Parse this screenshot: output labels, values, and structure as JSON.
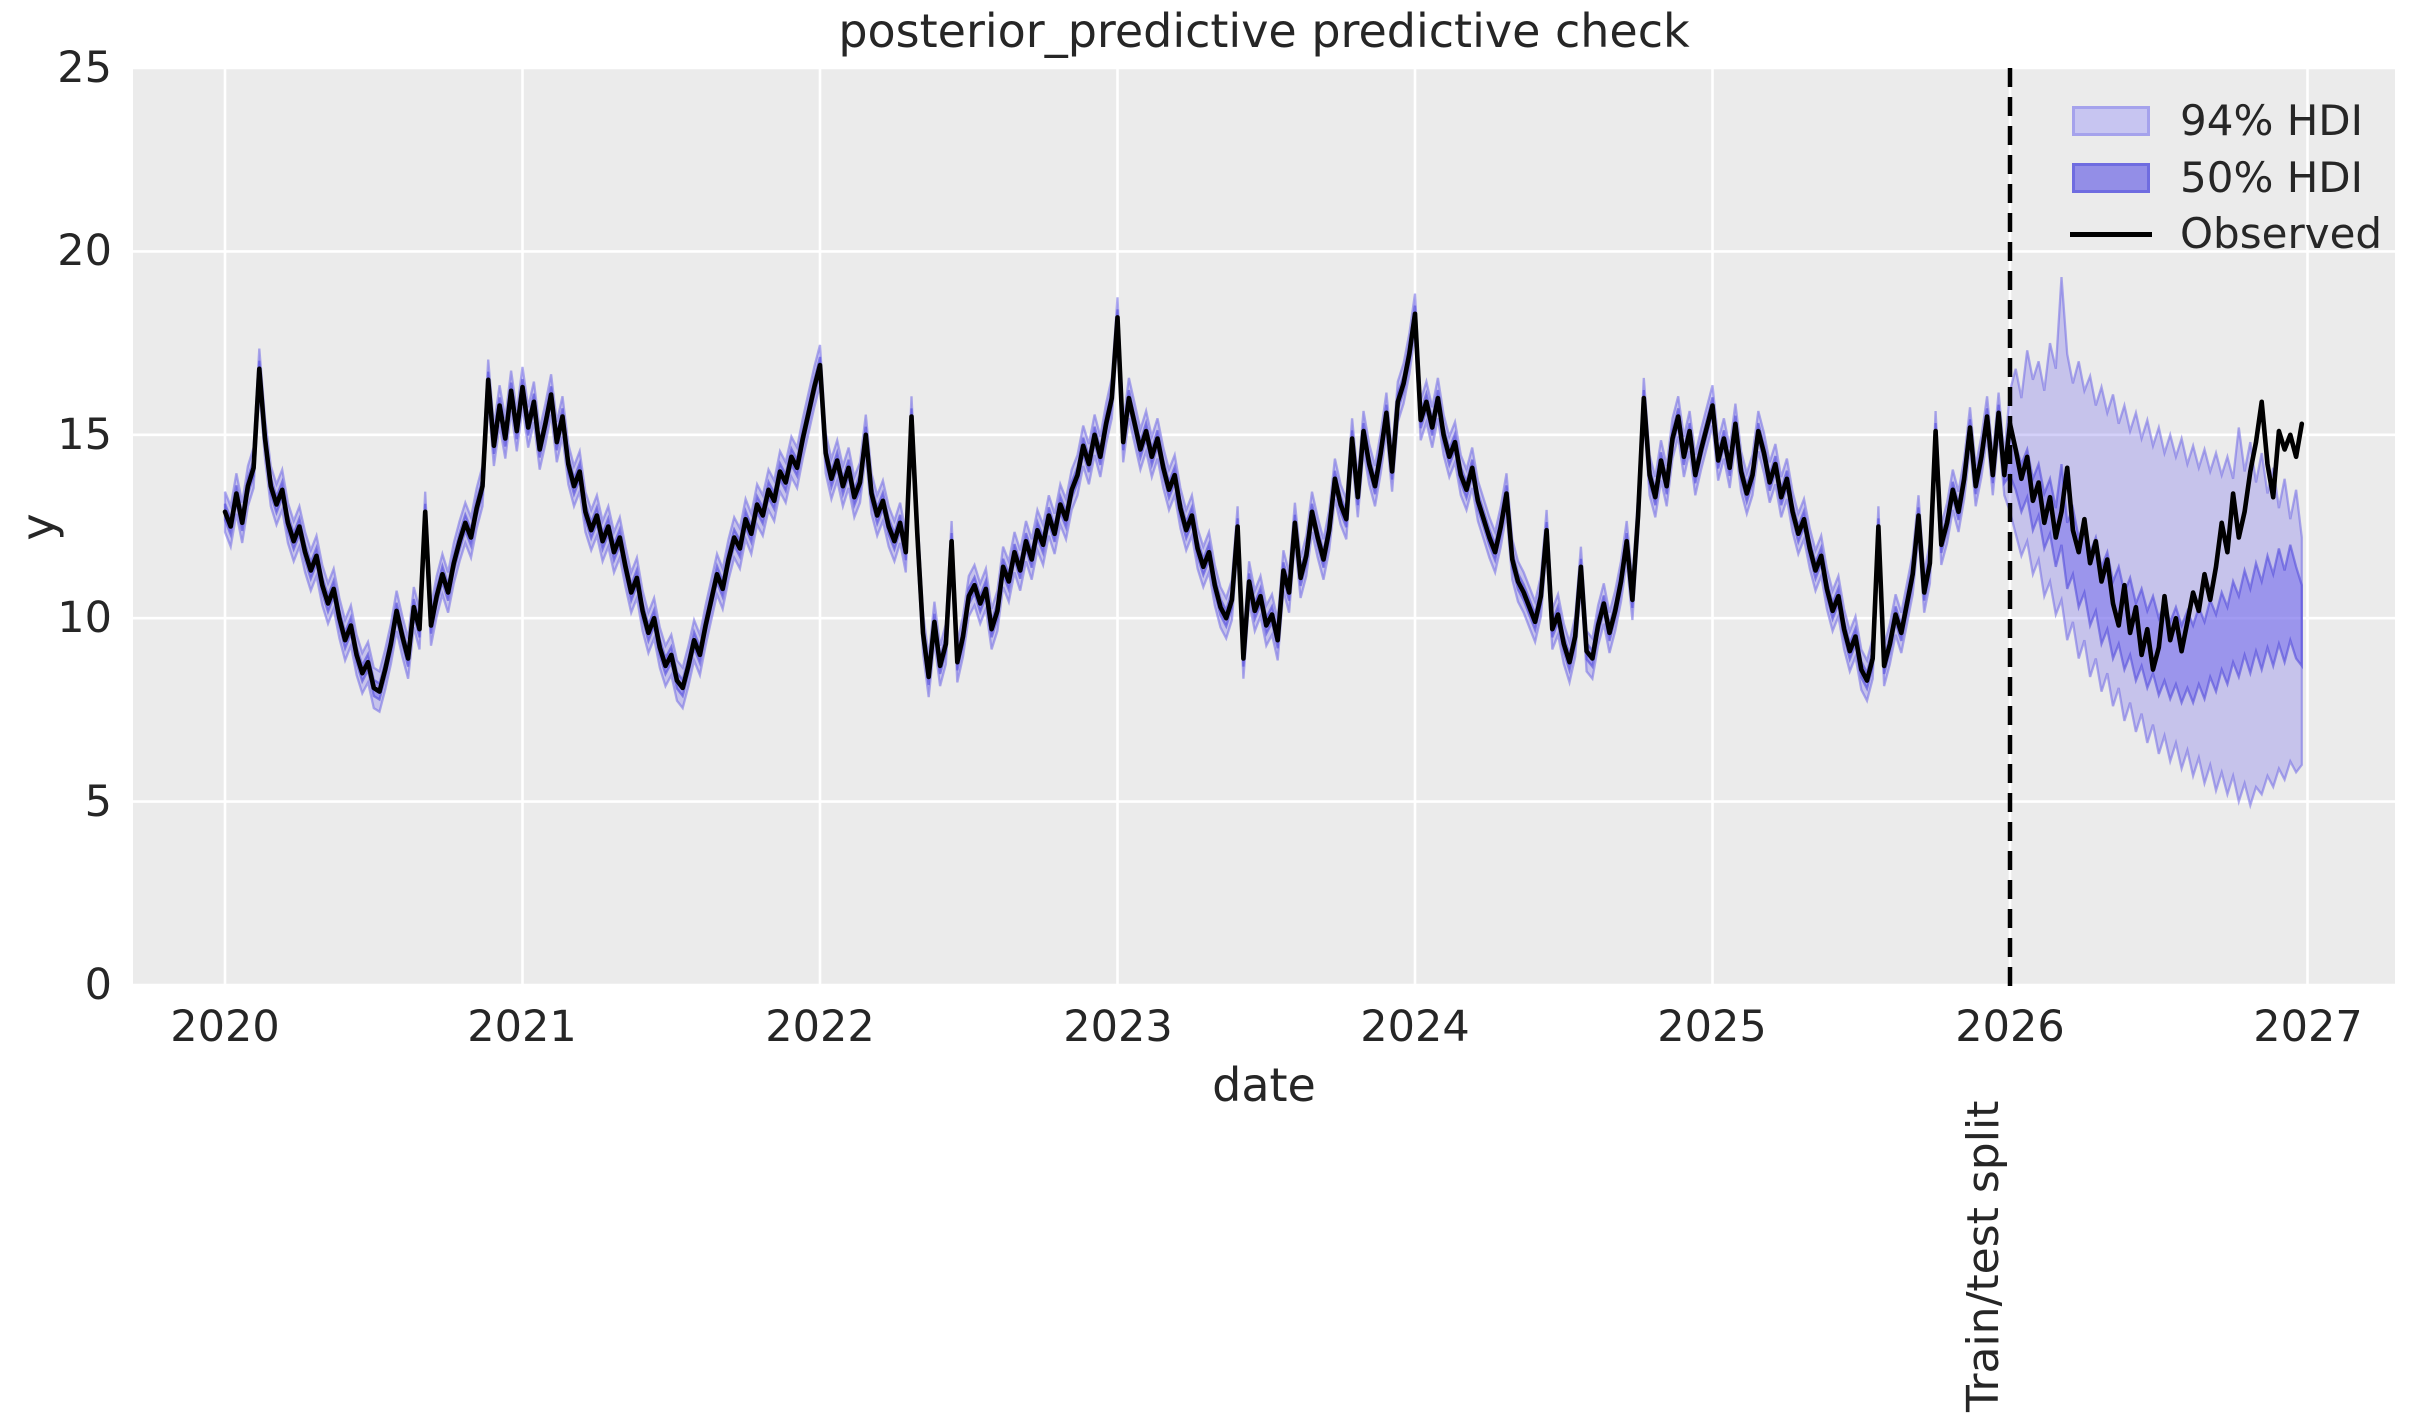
{
  "chart_data": {
    "type": "line",
    "title": "posterior_predictive predictive check",
    "axes": {
      "xlabel": "date",
      "ylabel": "y",
      "xticks": [
        2020,
        2021,
        2022,
        2023,
        2024,
        2025,
        2026,
        2027
      ],
      "xtick_labels": [
        "2020",
        "2021",
        "2022",
        "2023",
        "2024",
        "2025",
        "2026",
        "2027"
      ],
      "yticks": [
        0,
        5,
        10,
        15,
        20,
        25
      ],
      "ytick_labels": [
        "0",
        "5",
        "10",
        "15",
        "20",
        "25"
      ],
      "xlim": [
        2019.69,
        2027.29
      ],
      "ylim": [
        0,
        25.2
      ],
      "grid": true
    },
    "legend": [
      {
        "label": "94% HDI",
        "type": "patch",
        "fill": "#c7c5f1",
        "edge": "#a5a2ec"
      },
      {
        "label": "50% HDI",
        "type": "patch",
        "fill": "#938ee7",
        "edge": "#6f6ce0"
      },
      {
        "label": "Observed",
        "type": "line",
        "color": "#000000"
      }
    ],
    "annotation": {
      "split_label": "Train/test split",
      "split_x": 2026
    },
    "points_per_year": 52,
    "x_start": 2020,
    "split_index": 312,
    "train_hdi94_halfwidth": 0.55,
    "train_hdi50_halfwidth": 0.22,
    "observed": [
      12.9,
      12.5,
      13.4,
      12.6,
      13.6,
      14.1,
      16.8,
      14.9,
      13.6,
      13.1,
      13.5,
      12.6,
      12.1,
      12.5,
      11.8,
      11.3,
      11.7,
      10.9,
      10.4,
      10.8,
      10.0,
      9.4,
      9.8,
      9.0,
      8.5,
      8.8,
      8.1,
      8.0,
      8.6,
      9.3,
      10.2,
      9.5,
      8.9,
      10.3,
      9.7,
      12.9,
      9.8,
      10.6,
      11.2,
      10.7,
      11.5,
      12.1,
      12.6,
      12.2,
      13.0,
      13.6,
      16.5,
      14.7,
      15.8,
      14.9,
      16.2,
      15.1,
      16.3,
      15.2,
      15.9,
      14.6,
      15.3,
      16.1,
      14.8,
      15.5,
      14.2,
      13.6,
      14.0,
      12.9,
      12.4,
      12.8,
      12.1,
      12.5,
      11.8,
      12.2,
      11.4,
      10.7,
      11.1,
      10.2,
      9.6,
      10.0,
      9.2,
      8.7,
      9.0,
      8.3,
      8.1,
      8.7,
      9.4,
      9.0,
      9.8,
      10.5,
      11.2,
      10.8,
      11.6,
      12.2,
      11.9,
      12.7,
      12.3,
      13.1,
      12.8,
      13.5,
      13.2,
      14.0,
      13.7,
      14.4,
      14.1,
      14.9,
      15.6,
      16.3,
      16.9,
      14.5,
      13.8,
      14.3,
      13.6,
      14.1,
      13.3,
      13.7,
      15.0,
      13.4,
      12.8,
      13.2,
      12.5,
      12.1,
      12.6,
      11.8,
      15.5,
      12.3,
      9.6,
      8.4,
      9.9,
      8.7,
      9.3,
      12.1,
      8.8,
      9.5,
      10.6,
      10.9,
      10.4,
      10.8,
      9.7,
      10.2,
      11.4,
      11.0,
      11.8,
      11.3,
      12.1,
      11.6,
      12.4,
      12.0,
      12.8,
      12.3,
      13.1,
      12.7,
      13.5,
      13.9,
      14.7,
      14.2,
      15.0,
      14.4,
      15.3,
      16.0,
      18.2,
      14.8,
      16.0,
      15.3,
      14.6,
      15.1,
      14.4,
      14.9,
      14.1,
      13.5,
      13.9,
      13.0,
      12.4,
      12.8,
      11.9,
      11.4,
      11.8,
      10.9,
      10.3,
      10.0,
      10.5,
      12.5,
      8.9,
      11.0,
      10.2,
      10.6,
      9.8,
      10.1,
      9.4,
      11.3,
      10.7,
      12.6,
      11.1,
      11.7,
      12.9,
      12.2,
      11.6,
      12.4,
      13.8,
      13.1,
      12.7,
      14.9,
      13.3,
      15.1,
      14.2,
      13.6,
      14.5,
      15.6,
      14.0,
      15.9,
      16.4,
      17.2,
      18.3,
      15.4,
      15.9,
      15.2,
      16.0,
      15.0,
      14.4,
      14.8,
      13.9,
      13.5,
      14.1,
      13.2,
      12.7,
      12.2,
      11.8,
      12.5,
      13.4,
      11.6,
      11.0,
      10.7,
      10.3,
      9.9,
      10.6,
      12.4,
      9.7,
      10.1,
      9.3,
      8.8,
      9.5,
      11.4,
      9.1,
      8.9,
      9.8,
      10.4,
      9.6,
      10.2,
      11.0,
      12.1,
      10.5,
      12.8,
      16.0,
      13.9,
      13.3,
      14.3,
      13.6,
      14.9,
      15.5,
      14.4,
      15.1,
      13.9,
      14.6,
      15.2,
      15.8,
      14.3,
      14.9,
      14.1,
      15.3,
      14.0,
      13.4,
      13.9,
      15.1,
      14.5,
      13.7,
      14.2,
      13.3,
      13.8,
      12.9,
      12.3,
      12.7,
      11.9,
      11.3,
      11.7,
      10.8,
      10.2,
      10.6,
      9.7,
      9.1,
      9.5,
      8.6,
      8.3,
      8.9,
      12.5,
      8.7,
      9.3,
      10.1,
      9.6,
      10.4,
      11.2,
      12.8,
      10.7,
      11.5,
      15.1,
      12.0,
      12.6,
      13.5,
      12.9,
      13.8,
      15.2,
      13.6,
      14.4,
      15.5,
      13.9,
      15.6,
      13.9,
      15.3,
      14.6,
      13.8,
      14.4,
      13.2,
      13.7,
      12.6,
      13.3,
      12.2,
      12.9,
      14.1,
      12.4,
      11.8,
      12.7,
      11.5,
      12.1,
      11.0,
      11.6,
      10.4,
      9.8,
      10.9,
      9.6,
      10.3,
      9.0,
      9.7,
      8.6,
      9.2,
      10.6,
      9.4,
      10.0,
      9.1,
      9.9,
      10.7,
      10.2,
      11.2,
      10.5,
      11.4,
      12.6,
      11.8,
      13.4,
      12.2,
      12.9,
      14.0,
      14.8,
      15.9,
      14.2,
      13.3,
      15.1,
      14.6,
      15.0,
      14.4,
      15.3
    ],
    "test_hdi94_upper": [
      16.2,
      16.8,
      16.0,
      17.3,
      16.5,
      17.0,
      16.2,
      17.5,
      16.8,
      19.3,
      17.2,
      16.4,
      17.0,
      16.2,
      16.6,
      15.8,
      16.3,
      15.6,
      16.1,
      15.3,
      15.8,
      15.1,
      15.6,
      14.9,
      15.4,
      14.7,
      15.2,
      14.5,
      15.0,
      14.4,
      14.9,
      14.2,
      14.7,
      14.1,
      14.6,
      14.0,
      14.5,
      13.9,
      14.4,
      13.8,
      15.2,
      14.0,
      14.8,
      13.7,
      14.5,
      13.4,
      14.1,
      13.0,
      13.8,
      12.7,
      13.5,
      12.2
    ],
    "test_hdi94_lower": [
      12.9,
      12.3,
      11.7,
      12.1,
      11.2,
      11.6,
      10.6,
      11.0,
      10.1,
      10.5,
      9.4,
      9.9,
      8.9,
      9.4,
      8.4,
      8.9,
      8.0,
      8.5,
      7.6,
      8.1,
      7.2,
      7.7,
      6.9,
      7.4,
      6.6,
      7.1,
      6.3,
      6.8,
      6.1,
      6.6,
      5.9,
      6.4,
      5.7,
      6.2,
      5.5,
      6.0,
      5.3,
      5.8,
      5.2,
      5.7,
      5.0,
      5.5,
      4.9,
      5.4,
      5.2,
      5.7,
      5.4,
      5.9,
      5.6,
      6.1,
      5.8,
      6.0
    ],
    "test_hdi50_upper": [
      15.1,
      14.7,
      14.2,
      14.6,
      13.8,
      14.2,
      13.4,
      13.8,
      13.0,
      14.2,
      12.6,
      13.0,
      12.2,
      12.6,
      11.8,
      12.2,
      11.4,
      11.8,
      11.0,
      11.4,
      10.7,
      11.1,
      10.4,
      10.8,
      10.2,
      10.6,
      10.0,
      10.4,
      9.9,
      10.3,
      9.8,
      10.2,
      9.8,
      10.3,
      9.9,
      10.5,
      10.1,
      10.7,
      10.3,
      11.0,
      10.6,
      11.3,
      10.8,
      11.5,
      11.0,
      11.7,
      11.2,
      11.9,
      11.3,
      12.0,
      11.4,
      10.9
    ],
    "test_hdi50_lower": [
      13.9,
      13.5,
      12.9,
      13.3,
      12.4,
      12.8,
      11.9,
      12.3,
      11.4,
      12.0,
      10.8,
      11.2,
      10.3,
      10.7,
      9.8,
      10.2,
      9.3,
      9.7,
      8.9,
      9.3,
      8.6,
      9.0,
      8.3,
      8.7,
      8.1,
      8.5,
      7.9,
      8.3,
      7.8,
      8.2,
      7.7,
      8.1,
      7.7,
      8.2,
      7.8,
      8.4,
      8.0,
      8.6,
      8.2,
      8.8,
      8.4,
      9.0,
      8.5,
      9.1,
      8.6,
      9.2,
      8.7,
      9.3,
      8.8,
      9.4,
      8.9,
      8.7
    ],
    "style": {
      "background": "#ebebeb",
      "grid_color": "#ffffff",
      "hdi94_fill": "rgba(121,112,236,0.32)",
      "hdi94_edge": "rgba(113,106,230,0.55)",
      "hdi50_fill": "rgba(121,112,236,0.55)",
      "hdi50_edge": "rgba(84,76,220,0.60)",
      "observed_color": "#000000",
      "split_line_color": "#000000"
    }
  }
}
